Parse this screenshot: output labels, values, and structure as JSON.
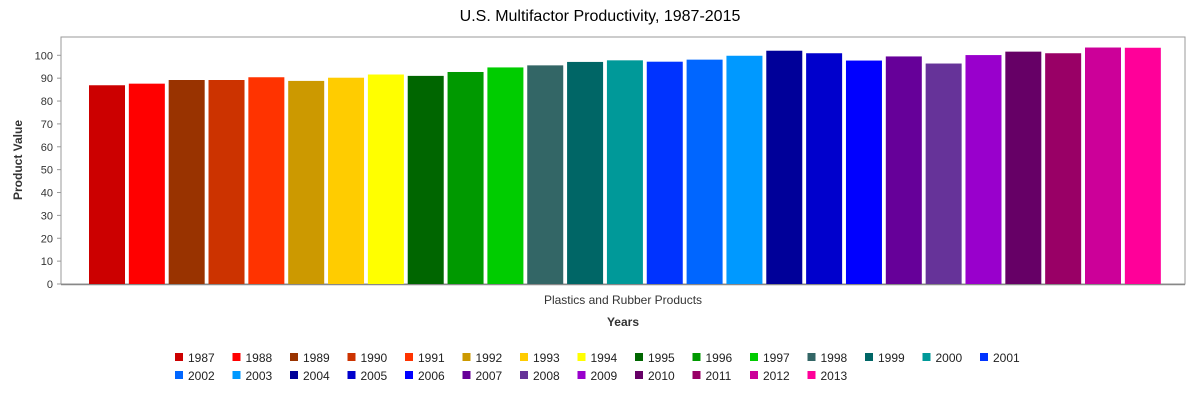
{
  "chart_data": {
    "type": "bar",
    "title": "U.S. Multifactor Productivity, 1987-2015",
    "xlabel": "Years",
    "ylabel": "Product Value",
    "categories": [
      "Plastics and Rubber Products"
    ],
    "ylim": [
      0,
      108
    ],
    "yticks": [
      "0",
      "10",
      "20",
      "30",
      "40",
      "50",
      "60",
      "70",
      "80",
      "90",
      "100"
    ],
    "grid": false,
    "legend_position": "bottom",
    "series": [
      {
        "name": "1987",
        "values": [
          86.9
        ],
        "color": "#CC0000"
      },
      {
        "name": "1988",
        "values": [
          87.6
        ],
        "color": "#FF0000"
      },
      {
        "name": "1989",
        "values": [
          89.2
        ],
        "color": "#993300"
      },
      {
        "name": "1990",
        "values": [
          89.2
        ],
        "color": "#CC3300"
      },
      {
        "name": "1991",
        "values": [
          90.4
        ],
        "color": "#FF3300"
      },
      {
        "name": "1992",
        "values": [
          88.8
        ],
        "color": "#CC9900"
      },
      {
        "name": "1993",
        "values": [
          90.2
        ],
        "color": "#FFCC00"
      },
      {
        "name": "1994",
        "values": [
          91.6
        ],
        "color": "#FFFF00"
      },
      {
        "name": "1995",
        "values": [
          91.0
        ],
        "color": "#006600"
      },
      {
        "name": "1996",
        "values": [
          92.7
        ],
        "color": "#009900"
      },
      {
        "name": "1997",
        "values": [
          94.7
        ],
        "color": "#00CC00"
      },
      {
        "name": "1998",
        "values": [
          95.6
        ],
        "color": "#336666"
      },
      {
        "name": "1999",
        "values": [
          97.1
        ],
        "color": "#006666"
      },
      {
        "name": "2000",
        "values": [
          97.8
        ],
        "color": "#009999"
      },
      {
        "name": "2001",
        "values": [
          97.2
        ],
        "color": "#0033FF"
      },
      {
        "name": "2002",
        "values": [
          98.1
        ],
        "color": "#0066FF"
      },
      {
        "name": "2003",
        "values": [
          99.8
        ],
        "color": "#0099FF"
      },
      {
        "name": "2004",
        "values": [
          102.0
        ],
        "color": "#000099"
      },
      {
        "name": "2005",
        "values": [
          100.9
        ],
        "color": "#0000CC"
      },
      {
        "name": "2006",
        "values": [
          97.7
        ],
        "color": "#0000FF"
      },
      {
        "name": "2007",
        "values": [
          99.5
        ],
        "color": "#660099"
      },
      {
        "name": "2008",
        "values": [
          96.4
        ],
        "color": "#663399"
      },
      {
        "name": "2009",
        "values": [
          100.1
        ],
        "color": "#9900CC"
      },
      {
        "name": "2010",
        "values": [
          101.6
        ],
        "color": "#660066"
      },
      {
        "name": "2011",
        "values": [
          100.9
        ],
        "color": "#990066"
      },
      {
        "name": "2012",
        "values": [
          103.4
        ],
        "color": "#CC0099"
      },
      {
        "name": "2013",
        "values": [
          103.3
        ],
        "color": "#FF0099"
      }
    ]
  }
}
